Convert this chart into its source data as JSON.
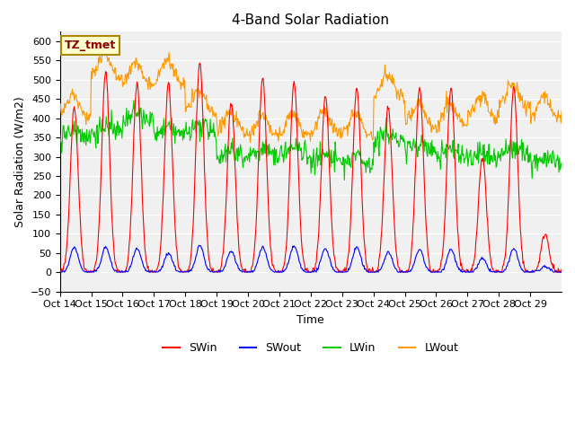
{
  "title": "4-Band Solar Radiation",
  "xlabel": "Time",
  "ylabel": "Solar Radiation (W/m2)",
  "ylim": [
    -50,
    625
  ],
  "yticks": [
    -50,
    0,
    50,
    100,
    150,
    200,
    250,
    300,
    350,
    400,
    450,
    500,
    550,
    600
  ],
  "xtick_labels": [
    "Oct 14",
    "Oct 15",
    "Oct 16",
    "Oct 17",
    "Oct 18",
    "Oct 19",
    "Oct 20",
    "Oct 21",
    "Oct 22",
    "Oct 23",
    "Oct 24",
    "Oct 25",
    "Oct 26",
    "Oct 27",
    "Oct 28",
    "Oct 29"
  ],
  "colors": {
    "SWin": "#ff0000",
    "SWout": "#0000ff",
    "LWin": "#00cc00",
    "LWout": "#ff9900"
  },
  "annotation_text": "TZ_tmet",
  "annotation_color": "#8b0000",
  "annotation_bg": "#ffffcc",
  "n_days": 16,
  "pts_per_day": 48,
  "SWin_peaks": [
    430,
    520,
    490,
    490,
    545,
    445,
    505,
    495,
    460,
    480,
    430,
    480,
    480,
    300,
    480,
    100
  ],
  "SWout_peaks": [
    65,
    65,
    60,
    50,
    70,
    55,
    65,
    68,
    62,
    65,
    52,
    60,
    60,
    35,
    62,
    15
  ],
  "LWin_base": [
    350,
    360,
    390,
    355,
    360,
    300,
    300,
    305,
    285,
    280,
    340,
    315,
    300,
    290,
    305,
    280
  ],
  "LWout_base": [
    400,
    510,
    485,
    490,
    415,
    360,
    350,
    355,
    355,
    355,
    455,
    380,
    380,
    400,
    430,
    400
  ]
}
